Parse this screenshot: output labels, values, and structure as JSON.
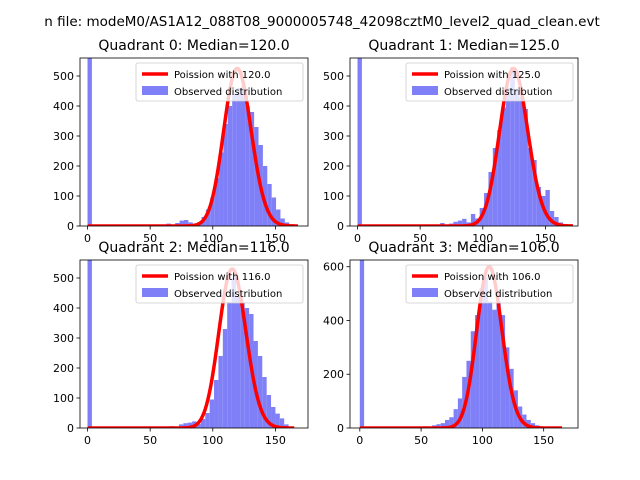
{
  "figure": {
    "suptitle": "n file: modeM0/AS1A12_088T08_9000005748_42098cztM0_level2_quad_clean.evt"
  },
  "colors": {
    "observed": "#7f7ff7",
    "poisson": "#ff0000",
    "axis": "#000000"
  },
  "chart_data": [
    {
      "type": "bar",
      "title": "Quadrant 0: Median=120.0",
      "xlabel": "",
      "ylabel": "",
      "xlim": [
        -6,
        176
      ],
      "ylim": [
        0,
        560
      ],
      "xticks": [
        0,
        50,
        100,
        150
      ],
      "yticks": [
        0,
        100,
        200,
        300,
        400,
        500
      ],
      "grid": false,
      "legend_position": "top-right",
      "legend": [
        "Poission with 120.0",
        "Observed distribution"
      ],
      "series": [
        {
          "name": "Poission with 120.0",
          "kind": "line",
          "lambda": 120.0,
          "x_range": [
            0,
            168
          ],
          "peak": 525,
          "line_width": 3.5
        },
        {
          "name": "Observed distribution",
          "kind": "histogram",
          "bins": [
            [
              0,
              3.5,
              560
            ],
            [
              63,
              66.5,
              8
            ],
            [
              66.5,
              70,
              0
            ],
            [
              70,
              73.5,
              10
            ],
            [
              73.5,
              77,
              18
            ],
            [
              77,
              80.5,
              20
            ],
            [
              80.5,
              84,
              12
            ],
            [
              84,
              87.5,
              8
            ],
            [
              87.5,
              91,
              12
            ],
            [
              91,
              94.5,
              30
            ],
            [
              94.5,
              98,
              55
            ],
            [
              98,
              101.5,
              95
            ],
            [
              101.5,
              105,
              160
            ],
            [
              105,
              108.5,
              245
            ],
            [
              108.5,
              112,
              340
            ],
            [
              112,
              115.5,
              400
            ],
            [
              115.5,
              119,
              440
            ],
            [
              119,
              122.5,
              460
            ],
            [
              122.5,
              126,
              465
            ],
            [
              126,
              129.5,
              400
            ],
            [
              129.5,
              133,
              380
            ],
            [
              133,
              136.5,
              330
            ],
            [
              136.5,
              140,
              270
            ],
            [
              140,
              143.5,
              200
            ],
            [
              143.5,
              147,
              140
            ],
            [
              147,
              150.5,
              95
            ],
            [
              150.5,
              154,
              55
            ],
            [
              154,
              157.5,
              25
            ],
            [
              157.5,
              161,
              12
            ],
            [
              161,
              164.5,
              6
            ],
            [
              164.5,
              168,
              3
            ]
          ]
        }
      ]
    },
    {
      "type": "bar",
      "title": "Quadrant 1: Median=125.0",
      "xlabel": "",
      "ylabel": "",
      "xlim": [
        -6,
        176
      ],
      "ylim": [
        0,
        560
      ],
      "xticks": [
        0,
        50,
        100,
        150
      ],
      "yticks": [
        0,
        100,
        200,
        300,
        400,
        500
      ],
      "grid": false,
      "legend_position": "top-right",
      "legend": [
        "Poission with 125.0",
        "Observed distribution"
      ],
      "series": [
        {
          "name": "Poission with 125.0",
          "kind": "line",
          "lambda": 125.0,
          "x_range": [
            0,
            172
          ],
          "peak": 525,
          "line_width": 3.5
        },
        {
          "name": "Observed distribution",
          "kind": "histogram",
          "bins": [
            [
              0,
              3.5,
              560
            ],
            [
              66,
              69.5,
              10
            ],
            [
              69.5,
              73,
              0
            ],
            [
              73,
              76.5,
              8
            ],
            [
              76.5,
              80,
              14
            ],
            [
              80,
              83.5,
              18
            ],
            [
              83.5,
              87,
              24
            ],
            [
              87,
              90.5,
              12
            ],
            [
              90.5,
              94,
              40
            ],
            [
              94,
              97.5,
              25
            ],
            [
              97.5,
              101,
              60
            ],
            [
              101,
              104.5,
              110
            ],
            [
              104.5,
              108,
              180
            ],
            [
              108,
              111.5,
              260
            ],
            [
              111.5,
              115,
              320
            ],
            [
              115,
              118.5,
              395
            ],
            [
              118.5,
              122,
              460
            ],
            [
              122,
              125.5,
              530
            ],
            [
              125.5,
              129,
              455
            ],
            [
              129,
              132.5,
              430
            ],
            [
              132.5,
              136,
              390
            ],
            [
              136,
              139.5,
              260
            ],
            [
              139.5,
              143,
              220
            ],
            [
              143,
              146.5,
              130
            ],
            [
              146.5,
              150,
              100
            ],
            [
              150,
              153.5,
              120
            ],
            [
              153.5,
              157,
              50
            ],
            [
              157,
              160.5,
              30
            ],
            [
              160.5,
              164,
              12
            ],
            [
              164,
              167.5,
              6
            ],
            [
              167.5,
              171,
              2
            ]
          ]
        }
      ]
    },
    {
      "type": "bar",
      "title": "Quadrant 2: Median=116.0",
      "xlabel": "",
      "ylabel": "",
      "xlim": [
        -6,
        176
      ],
      "ylim": [
        0,
        560
      ],
      "xticks": [
        0,
        50,
        100,
        150
      ],
      "yticks": [
        0,
        100,
        200,
        300,
        400,
        500
      ],
      "grid": false,
      "legend_position": "top-right",
      "legend": [
        "Poission with 116.0",
        "Observed distribution"
      ],
      "series": [
        {
          "name": "Poission with 116.0",
          "kind": "line",
          "lambda": 116.0,
          "x_range": [
            0,
            165
          ],
          "peak": 530,
          "line_width": 3.5
        },
        {
          "name": "Observed distribution",
          "kind": "histogram",
          "bins": [
            [
              0,
              3.5,
              560
            ],
            [
              66,
              69.5,
              6
            ],
            [
              69.5,
              73,
              0
            ],
            [
              73,
              76.5,
              12
            ],
            [
              76.5,
              80,
              16
            ],
            [
              80,
              83.5,
              18
            ],
            [
              83.5,
              87,
              22
            ],
            [
              87,
              90.5,
              14
            ],
            [
              90.5,
              94,
              30
            ],
            [
              94,
              97.5,
              50
            ],
            [
              97.5,
              101,
              95
            ],
            [
              101,
              104.5,
              160
            ],
            [
              104.5,
              108,
              240
            ],
            [
              108,
              111.5,
              330
            ],
            [
              111.5,
              115,
              420
            ],
            [
              115,
              118.5,
              500
            ],
            [
              118.5,
              122,
              440
            ],
            [
              122,
              125.5,
              420
            ],
            [
              125.5,
              129,
              400
            ],
            [
              129,
              132.5,
              380
            ],
            [
              132.5,
              136,
              290
            ],
            [
              136,
              139.5,
              240
            ],
            [
              139.5,
              143,
              170
            ],
            [
              143,
              146.5,
              110
            ],
            [
              146.5,
              150,
              70
            ],
            [
              150,
              153.5,
              48
            ],
            [
              153.5,
              157,
              32
            ],
            [
              157,
              160.5,
              12
            ],
            [
              160.5,
              164,
              4
            ]
          ]
        }
      ]
    },
    {
      "type": "bar",
      "title": "Quadrant 3: Median=106.0",
      "xlabel": "",
      "ylabel": "",
      "xlim": [
        -8,
        178
      ],
      "ylim": [
        0,
        625
      ],
      "xticks": [
        0,
        50,
        100,
        150
      ],
      "yticks": [
        0,
        200,
        400,
        600
      ],
      "grid": false,
      "legend_position": "top-right",
      "legend": [
        "Poission with 106.0",
        "Observed distribution"
      ],
      "series": [
        {
          "name": "Poission with 106.0",
          "kind": "line",
          "lambda": 106.0,
          "x_range": [
            0,
            165
          ],
          "peak": 600,
          "line_width": 3.5
        },
        {
          "name": "Observed distribution",
          "kind": "histogram",
          "bins": [
            [
              0,
              3.5,
              625
            ],
            [
              52,
              55.5,
              6
            ],
            [
              55.5,
              59,
              0
            ],
            [
              59,
              62.5,
              10
            ],
            [
              62.5,
              66,
              14
            ],
            [
              66,
              69.5,
              18
            ],
            [
              69.5,
              73,
              30
            ],
            [
              73,
              76.5,
              40
            ],
            [
              76.5,
              80,
              70
            ],
            [
              80,
              83.5,
              110
            ],
            [
              83.5,
              87,
              190
            ],
            [
              87,
              90.5,
              250
            ],
            [
              90.5,
              94,
              360
            ],
            [
              94,
              97.5,
              420
            ],
            [
              97.5,
              101,
              520
            ],
            [
              101,
              104.5,
              560
            ],
            [
              104.5,
              108,
              470
            ],
            [
              108,
              111.5,
              440
            ],
            [
              111.5,
              115,
              470
            ],
            [
              115,
              118.5,
              420
            ],
            [
              118.5,
              122,
              300
            ],
            [
              122,
              125.5,
              220
            ],
            [
              125.5,
              129,
              140
            ],
            [
              129,
              132.5,
              80
            ],
            [
              132.5,
              136,
              50
            ],
            [
              136,
              139.5,
              30
            ],
            [
              139.5,
              143,
              18
            ],
            [
              143,
              146.5,
              10
            ],
            [
              146.5,
              150,
              6
            ],
            [
              150,
              153.5,
              3
            ]
          ]
        }
      ]
    }
  ]
}
